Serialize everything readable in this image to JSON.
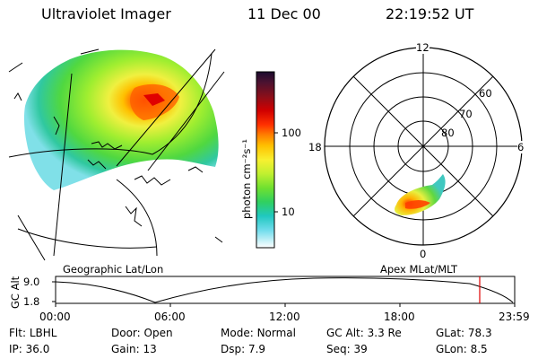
{
  "header": {
    "instrument": "Ultraviolet Imager",
    "date": "11 Dec 00",
    "time": "22:19:52 UT"
  },
  "geo_panel": {
    "label": "Geographic Lat/Lon"
  },
  "colorbar": {
    "unit_label": "photon cm⁻²s⁻¹",
    "ticks": [
      "100",
      "10"
    ],
    "colors": [
      "#1a0a2e",
      "#4b1230",
      "#8a0f1a",
      "#c40000",
      "#ff2000",
      "#ff7a00",
      "#ffb000",
      "#ffe000",
      "#d8ff20",
      "#80f020",
      "#30d840",
      "#20c0a0",
      "#20c8e0",
      "#80e0f0",
      "#d0f0f8",
      "#ffffff"
    ]
  },
  "polar_panel": {
    "label": "Apex MLat/MLT",
    "mlt_labels": {
      "top": "12",
      "left": "18",
      "right": "6",
      "bottom": "0"
    },
    "mlat_labels": [
      "60",
      "70",
      "80"
    ]
  },
  "timeline": {
    "axis_label": "GC Alt",
    "y_ticks": [
      "9.0",
      "1.8"
    ],
    "x_ticks": [
      "00:00",
      "06:00",
      "12:00",
      "18:00",
      "23:59"
    ],
    "marker_color": "#e00000"
  },
  "status": {
    "row1": [
      {
        "key": "Flt:",
        "value": "LBHL"
      },
      {
        "key": "Door:",
        "value": "Open"
      },
      {
        "key": "Mode:",
        "value": "Normal"
      },
      {
        "key": "GC Alt:",
        "value": "3.3 Re"
      },
      {
        "key": "GLat:",
        "value": "78.3"
      }
    ],
    "row2": [
      {
        "key": "IP:",
        "value": "36.0"
      },
      {
        "key": "Gain:",
        "value": "13"
      },
      {
        "key": "Dsp:",
        "value": "7.9"
      },
      {
        "key": "Seq:",
        "value": "39"
      },
      {
        "key": "GLon:",
        "value": "8.5"
      }
    ]
  }
}
